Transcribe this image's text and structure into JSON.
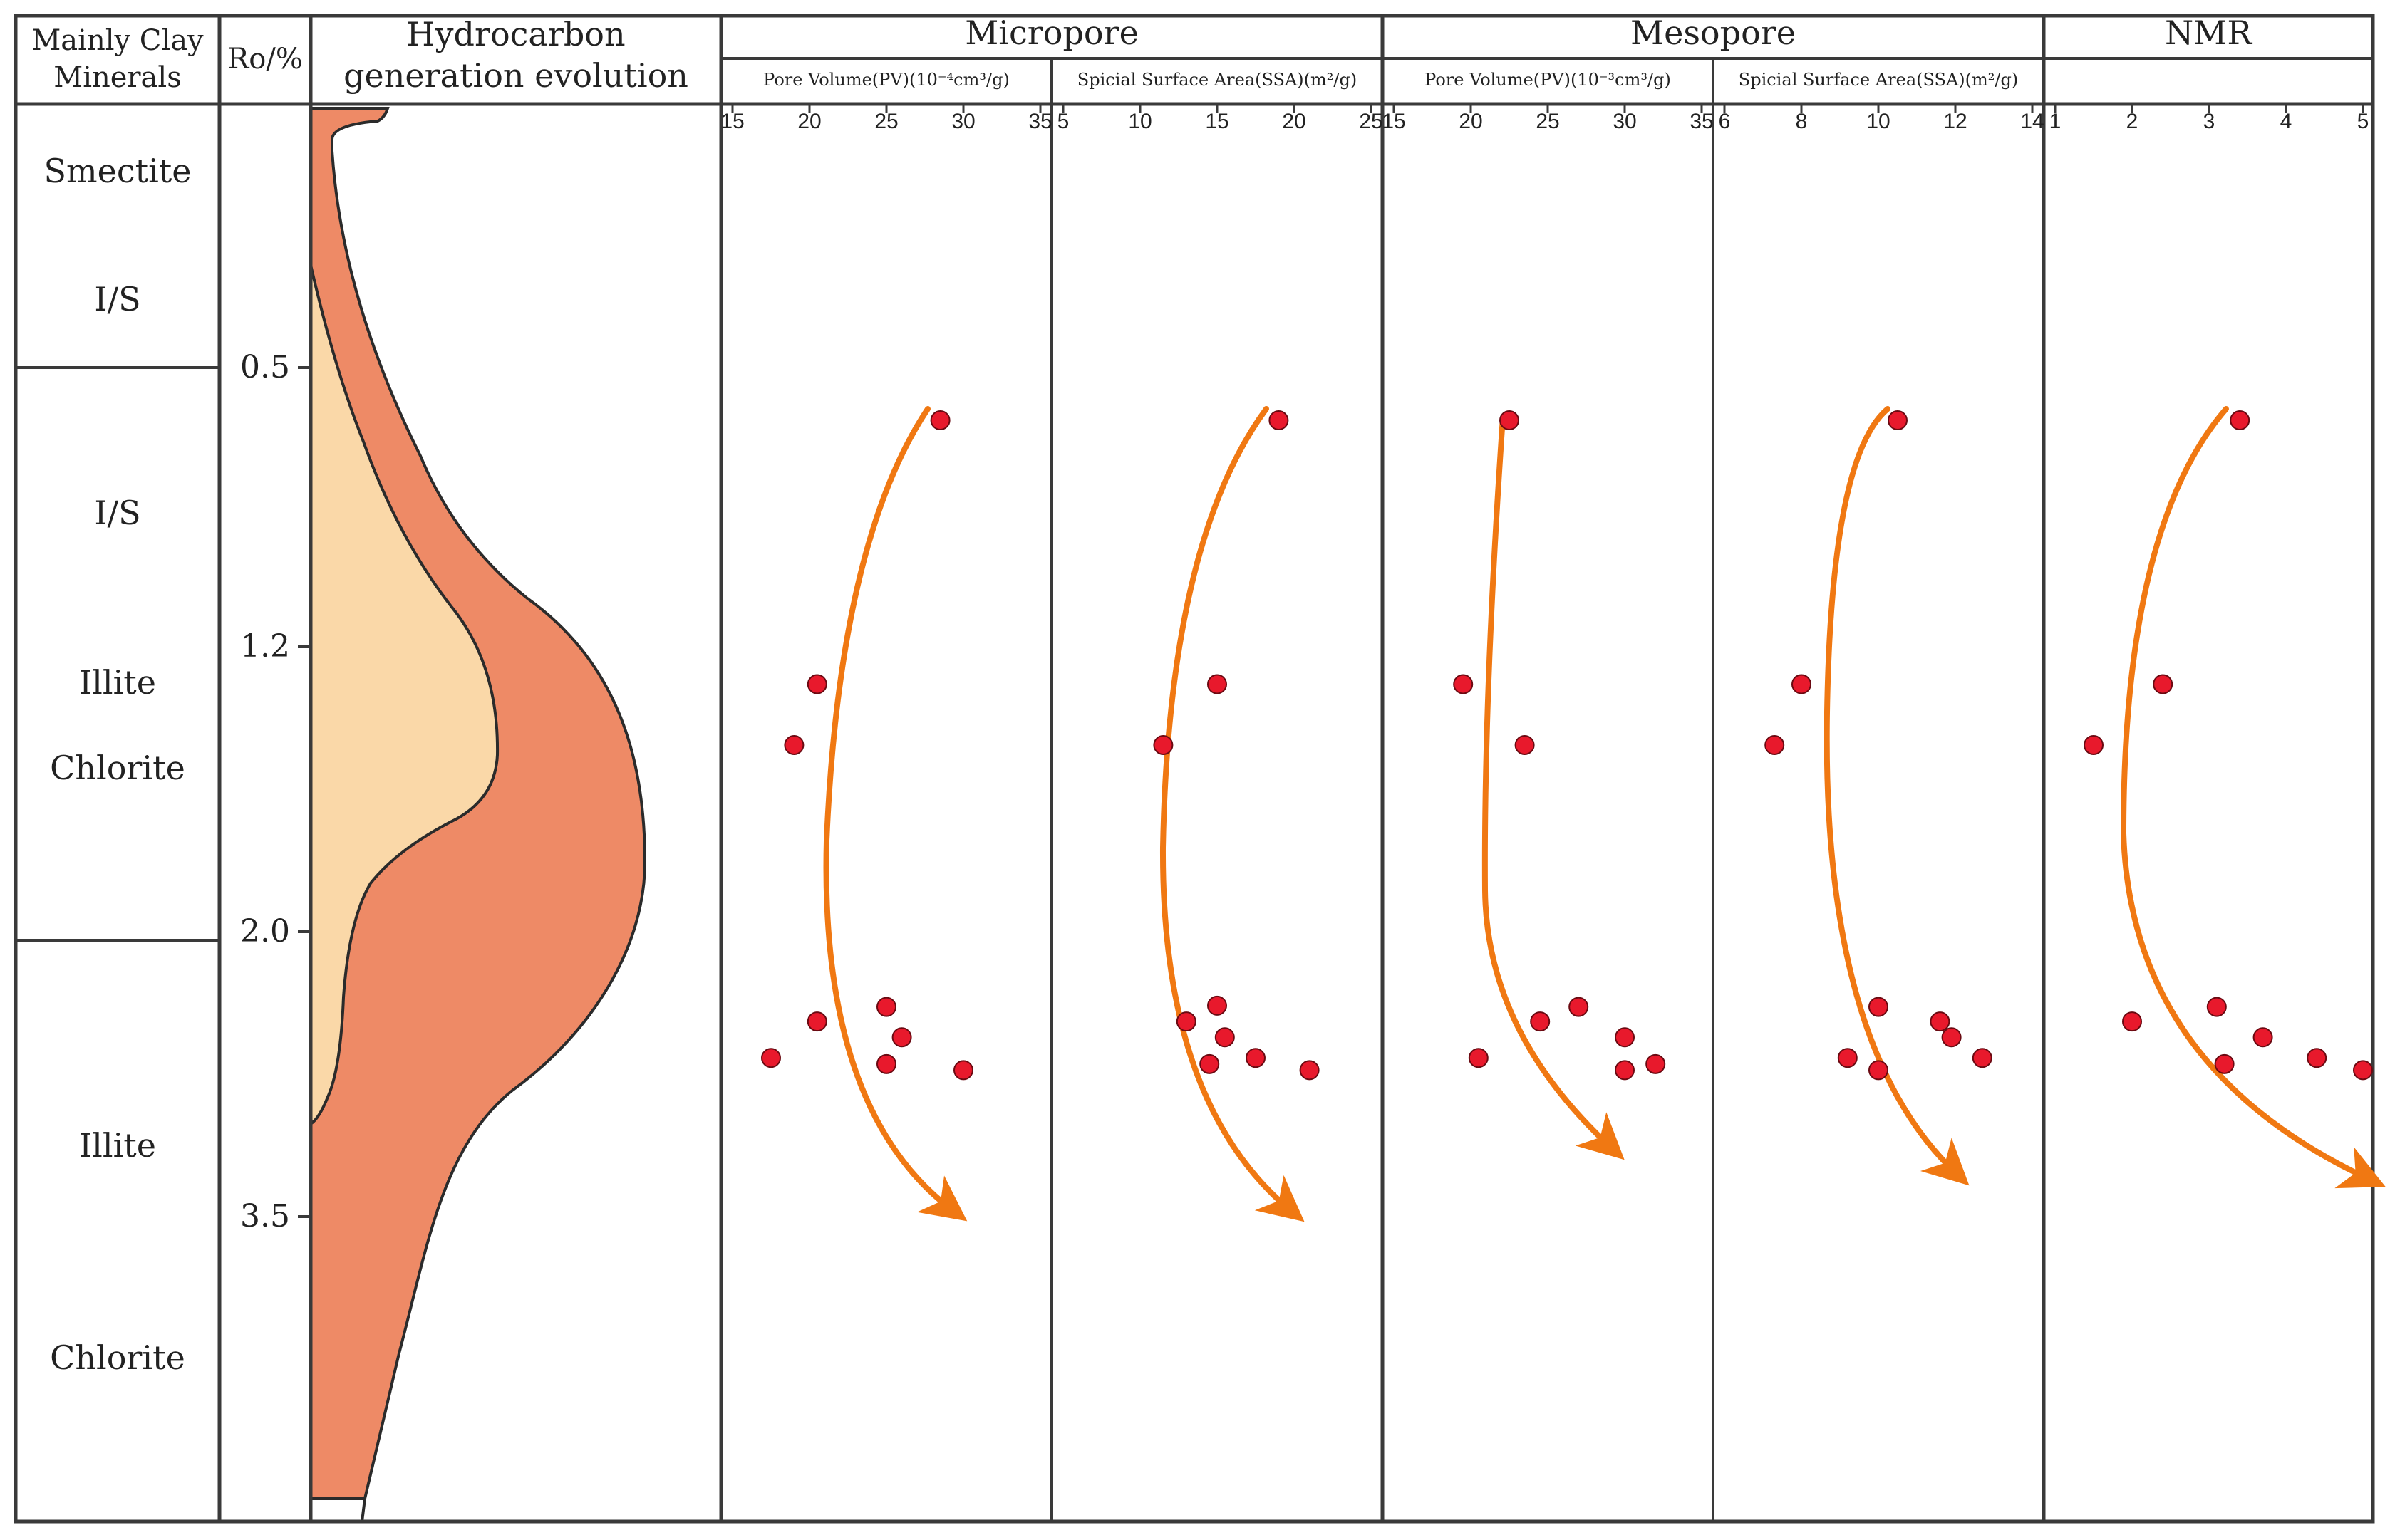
{
  "columns": {
    "clay_header_line1": "Mainly Clay",
    "clay_header_line2": "Minerals",
    "ro_header": "Ro/%",
    "hc_header_line1": "Hydrocarbon",
    "hc_header_line2": "generation evolution",
    "micropore": "Micropore",
    "mesopore": "Mesopore",
    "nmr": "NMR"
  },
  "sub_headers": {
    "micro_pv": "Pore Volume(PV)(10⁻⁴cm³/g)",
    "micro_ssa": "Spicial Surface Area(SSA)(m²/g)",
    "meso_pv": "Pore Volume(PV)(10⁻³cm³/g)",
    "meso_ssa": "Spicial Surface Area(SSA)(m²/g)"
  },
  "clay_minerals": {
    "smectite": "Smectite",
    "is_upper": "I/S",
    "is_lower": "I/S",
    "illite_1": "Illite",
    "chlorite_1": "Chlorite",
    "illite_2": "Illite",
    "chlorite_2": "Chlorite"
  },
  "ro_ticks": [
    "0.5",
    "1.2",
    "2.0",
    "3.5"
  ],
  "colors": {
    "frame": "#3a3a3a",
    "gas_fill": "#ee8a66",
    "oil_fill": "#fad8a8",
    "point_fill": "#e8192c",
    "arrow": "#f07812"
  },
  "chart_data": {
    "type": "scatter",
    "panels": [
      {
        "name": "micro_pv",
        "xlim": [
          15,
          35
        ],
        "ticks": [
          15,
          20,
          25,
          30,
          35
        ],
        "points": [
          [
            28.5,
            0.57
          ],
          [
            20.5,
            1.25
          ],
          [
            19.0,
            1.4
          ],
          [
            25,
            2.15
          ],
          [
            20.5,
            2.27
          ],
          [
            26,
            2.4
          ],
          [
            17.5,
            2.57
          ],
          [
            25,
            2.62
          ],
          [
            30,
            2.67
          ]
        ]
      },
      {
        "name": "micro_ssa",
        "xlim": [
          5,
          25
        ],
        "ticks": [
          5,
          10,
          15,
          20,
          25
        ],
        "points": [
          [
            19,
            0.57
          ],
          [
            15,
            1.25
          ],
          [
            11.5,
            1.4
          ],
          [
            15,
            2.14
          ],
          [
            13,
            2.27
          ],
          [
            15.5,
            2.4
          ],
          [
            17.5,
            2.57
          ],
          [
            14.5,
            2.62
          ],
          [
            21,
            2.67
          ]
        ]
      },
      {
        "name": "meso_pv",
        "xlim": [
          15,
          35
        ],
        "ticks": [
          15,
          20,
          25,
          30,
          35
        ],
        "points": [
          [
            22.5,
            0.57
          ],
          [
            19.5,
            1.25
          ],
          [
            23.5,
            1.4
          ],
          [
            27,
            2.15
          ],
          [
            24.5,
            2.27
          ],
          [
            30,
            2.4
          ],
          [
            20.5,
            2.57
          ],
          [
            32,
            2.62
          ],
          [
            30,
            2.67
          ]
        ]
      },
      {
        "name": "meso_ssa",
        "xlim": [
          6,
          14
        ],
        "ticks": [
          6,
          8,
          10,
          12,
          14
        ],
        "points": [
          [
            10.5,
            0.57
          ],
          [
            8,
            1.25
          ],
          [
            7.3,
            1.4
          ],
          [
            10,
            2.15
          ],
          [
            11.6,
            2.27
          ],
          [
            11.9,
            2.4
          ],
          [
            9.2,
            2.57
          ],
          [
            12.7,
            2.57
          ],
          [
            10,
            2.67
          ]
        ]
      },
      {
        "name": "nmr",
        "xlim": [
          1,
          5
        ],
        "ticks": [
          1,
          2,
          3,
          4,
          5
        ],
        "points": [
          [
            3.4,
            0.57
          ],
          [
            2.4,
            1.25
          ],
          [
            1.5,
            1.4
          ],
          [
            3.1,
            2.15
          ],
          [
            2,
            2.27
          ],
          [
            3.7,
            2.4
          ],
          [
            4.4,
            2.57
          ],
          [
            3.2,
            2.62
          ],
          [
            5,
            2.67
          ]
        ]
      }
    ]
  }
}
